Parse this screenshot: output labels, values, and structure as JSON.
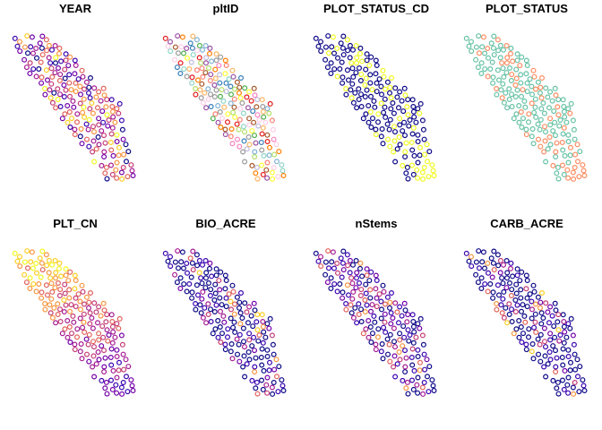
{
  "figure": {
    "background": "#ffffff",
    "marker_style": "open-circle"
  },
  "palettes": {
    "sf_continuous": [
      "#0D0887",
      "#3A04B0",
      "#7301A8",
      "#A51C92",
      "#C43C75",
      "#E0625A",
      "#F89540",
      "#FCCE25",
      "#F0F921"
    ],
    "plot_status": [
      "#66C2A5",
      "#FC8D62"
    ],
    "pltID": [
      "#E41A1C",
      "#377EB8",
      "#4DAF4A",
      "#984EA3",
      "#FF7F00",
      "#FFFF33",
      "#A65628",
      "#F781BF",
      "#999999",
      "#8DD3C7",
      "#BEBADA",
      "#FB8072",
      "#80B1D3",
      "#FDB462",
      "#B3DE69",
      "#FCCDE5"
    ]
  },
  "chart_data": [
    {
      "type": "scatter",
      "title": "YEAR",
      "color_scheme": "sf_continuous",
      "scale": "continuous"
    },
    {
      "type": "scatter",
      "title": "pltID",
      "color_scheme": "pltID",
      "scale": "categorical"
    },
    {
      "type": "scatter",
      "title": "PLOT_STATUS_CD",
      "color_scheme": "sf_continuous",
      "scale": "binary"
    },
    {
      "type": "scatter",
      "title": "PLOT_STATUS",
      "color_scheme": "plot_status",
      "scale": "binary"
    },
    {
      "type": "scatter",
      "title": "PLT_CN",
      "color_scheme": "sf_continuous",
      "scale": "continuous"
    },
    {
      "type": "scatter",
      "title": "BIO_ACRE",
      "color_scheme": "sf_continuous",
      "scale": "continuous"
    },
    {
      "type": "scatter",
      "title": "nStems",
      "color_scheme": "sf_continuous",
      "scale": "continuous"
    },
    {
      "type": "scatter",
      "title": "CARB_ACRE",
      "color_scheme": "sf_continuous",
      "scale": "continuous"
    }
  ]
}
